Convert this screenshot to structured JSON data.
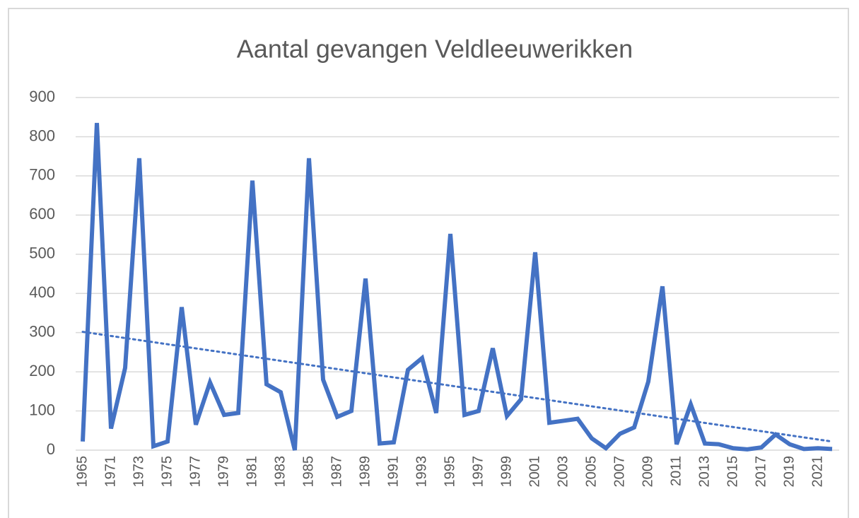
{
  "chart_data": {
    "type": "line",
    "title": "Aantal gevangen Veldleeuwerikken",
    "categories": [
      "1965",
      null,
      "1971",
      null,
      "1973",
      null,
      "1975",
      null,
      "1977",
      null,
      "1979",
      null,
      "1981",
      null,
      "1983",
      null,
      "1985",
      null,
      "1987",
      null,
      "1989",
      null,
      "1991",
      null,
      "1993",
      null,
      "1995",
      null,
      "1997",
      null,
      "1999",
      null,
      "2001",
      null,
      "2003",
      null,
      "2005",
      null,
      "2007",
      null,
      "2009",
      null,
      "2011",
      null,
      "2013",
      null,
      "2015",
      null,
      "2017",
      null,
      "2019",
      null,
      "2021",
      null
    ],
    "values": [
      22,
      835,
      55,
      210,
      745,
      10,
      22,
      365,
      65,
      173,
      90,
      95,
      688,
      168,
      148,
      0,
      745,
      180,
      85,
      100,
      438,
      17,
      20,
      205,
      235,
      95,
      552,
      90,
      100,
      260,
      87,
      130,
      505,
      70,
      75,
      80,
      30,
      5,
      42,
      58,
      175,
      418,
      15,
      117,
      17,
      15,
      5,
      2,
      7,
      40,
      15,
      3,
      5,
      3
    ],
    "color": "#4472c4",
    "trendline": {
      "values": [
        302,
        22
      ],
      "color": "#4472c4",
      "style": "dotted"
    },
    "ylim": [
      0,
      900
    ],
    "yticks": [
      0,
      100,
      200,
      300,
      400,
      500,
      600,
      700,
      800,
      900
    ],
    "grid": true
  }
}
